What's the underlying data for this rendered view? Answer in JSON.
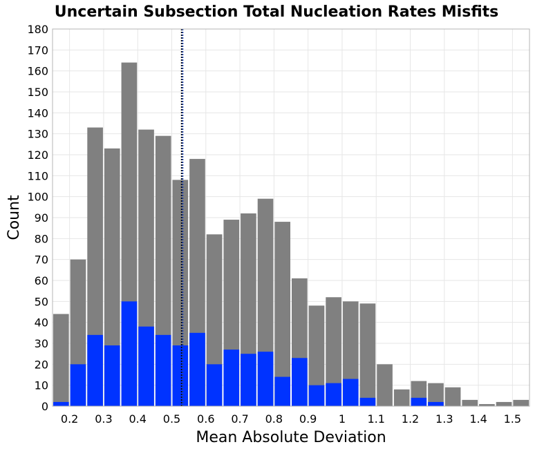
{
  "chart_data": {
    "type": "bar",
    "title": "Uncertain Subsection Total Nucleation Rates Misfits",
    "xlabel": "Mean Absolute Deviation",
    "ylabel": "Count",
    "xlim": [
      0.15,
      1.55
    ],
    "ylim": [
      0,
      180
    ],
    "bin_width": 0.05,
    "x_ticks": [
      "0.2",
      "0.3",
      "0.4",
      "0.5",
      "0.6",
      "0.7",
      "0.8",
      "0.9",
      "1",
      "1.1",
      "1.2",
      "1.3",
      "1.4",
      "1.5"
    ],
    "y_ticks": [
      "0",
      "10",
      "20",
      "30",
      "40",
      "50",
      "60",
      "70",
      "80",
      "90",
      "100",
      "110",
      "120",
      "130",
      "140",
      "150",
      "160",
      "170",
      "180"
    ],
    "grid": true,
    "bin_starts": [
      0.15,
      0.2,
      0.25,
      0.3,
      0.35,
      0.4,
      0.45,
      0.5,
      0.55,
      0.6,
      0.65,
      0.7,
      0.75,
      0.8,
      0.85,
      0.9,
      0.95,
      1.0,
      1.05,
      1.1,
      1.15,
      1.2,
      1.25,
      1.3,
      1.35,
      1.4,
      1.45,
      1.5
    ],
    "series": [
      {
        "color": "#808080",
        "values": [
          44,
          70,
          133,
          123,
          164,
          132,
          129,
          108,
          118,
          82,
          89,
          92,
          99,
          88,
          61,
          48,
          52,
          50,
          49,
          20,
          8,
          12,
          11,
          9,
          3,
          1,
          2,
          3
        ]
      },
      {
        "color": "#0033ff",
        "values": [
          2,
          20,
          34,
          29,
          50,
          38,
          34,
          29,
          35,
          20,
          27,
          25,
          26,
          14,
          23,
          10,
          11,
          13,
          4,
          0,
          0,
          4,
          2,
          0,
          0,
          0,
          0,
          0
        ]
      }
    ],
    "vertical_lines": [
      {
        "x": 0.529,
        "color": "#000000",
        "style": "dotted"
      },
      {
        "x": 0.532,
        "color": "#1f3fa0",
        "style": "dotted"
      }
    ]
  }
}
